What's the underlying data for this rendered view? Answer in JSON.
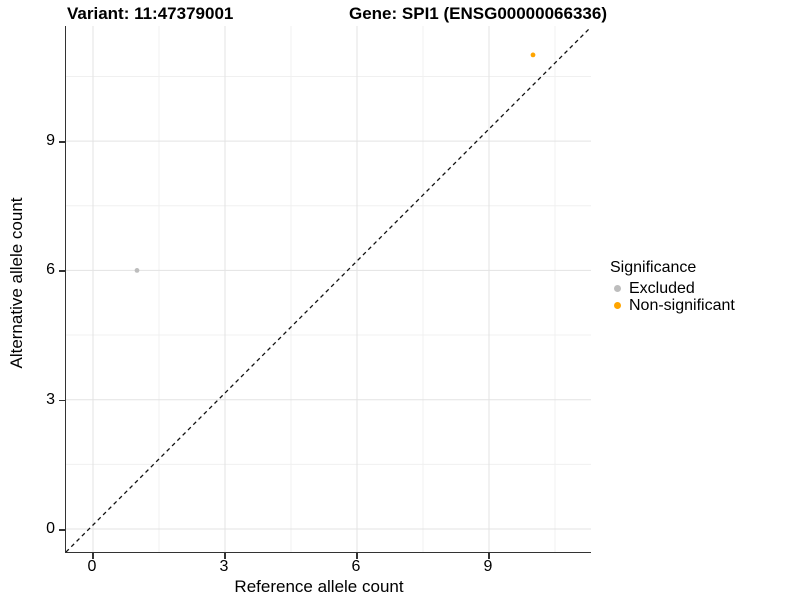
{
  "titles": {
    "left": "Variant: 11:47379001",
    "right": "Gene: SPI1 (ENSG00000066336)"
  },
  "chart_data": {
    "type": "scatter",
    "title": "Variant: 11:47379001 / Gene: SPI1 (ENSG00000066336)",
    "xlabel": "Reference allele count",
    "ylabel": "Alternative allele count",
    "xticks": [
      0,
      3,
      6,
      9
    ],
    "yticks": [
      0,
      3,
      6,
      9
    ],
    "xlim": [
      -0.6,
      11.3
    ],
    "ylim": [
      -0.55,
      11.6
    ],
    "grid": "major and minor gridlines, light gray on white",
    "reference_line": {
      "type": "diagonal",
      "equation": "y = x",
      "style": "dashed",
      "color": "#111111"
    },
    "series": [
      {
        "name": "Excluded",
        "color": "#BDBDBD",
        "points": [
          {
            "x": 1,
            "y": 6
          }
        ]
      },
      {
        "name": "Non-significant",
        "color": "#FFA500",
        "points": [
          {
            "x": 10,
            "y": 11
          }
        ]
      }
    ],
    "legend": {
      "title": "Significance",
      "position": "right",
      "entries": [
        {
          "label": "Excluded",
          "color": "#BDBDBD"
        },
        {
          "label": "Non-significant",
          "color": "#FFA500"
        }
      ]
    },
    "colors": {
      "axis_line": "#333333",
      "grid_major": "#E3E3E3",
      "grid_minor": "#F0F0F0",
      "text": "#000000"
    }
  }
}
